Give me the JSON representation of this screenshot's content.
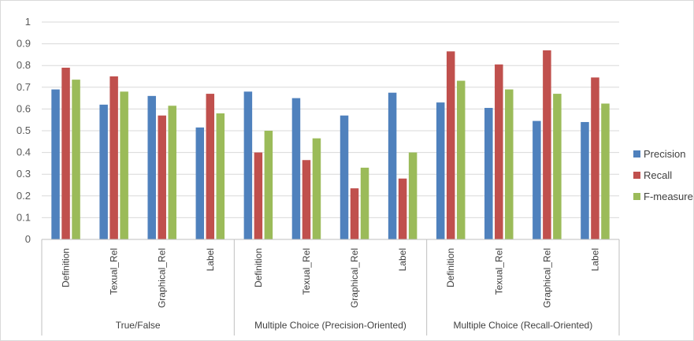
{
  "chart_data": {
    "type": "bar",
    "title": "",
    "xlabel": "",
    "ylabel": "",
    "ylim": [
      0,
      1
    ],
    "yticks": [
      "0",
      "0.1",
      "0.2",
      "0.3",
      "0.4",
      "0.5",
      "0.6",
      "0.7",
      "0.8",
      "0.9",
      "1"
    ],
    "grid": true,
    "legend_position": "right",
    "groups": [
      {
        "label": "True/False",
        "categories": [
          "Definition",
          "Texual_Rel",
          "Graphical_Rel",
          "Label"
        ]
      },
      {
        "label": "Multiple Choice (Precision-Oriented)",
        "categories": [
          "Definition",
          "Texual_Rel",
          "Graphical_Rel",
          "Label"
        ]
      },
      {
        "label": "Multiple Choice (Recall-Oriented)",
        "categories": [
          "Definition",
          "Texual_Rel",
          "Graphical_Rel",
          "Label"
        ]
      }
    ],
    "series": [
      {
        "name": "Precision",
        "color": "#4f81bd",
        "values": [
          0.69,
          0.62,
          0.66,
          0.515,
          0.68,
          0.65,
          0.57,
          0.675,
          0.63,
          0.605,
          0.545,
          0.54
        ]
      },
      {
        "name": "Recall",
        "color": "#c0504d",
        "values": [
          0.79,
          0.75,
          0.57,
          0.67,
          0.4,
          0.365,
          0.235,
          0.28,
          0.865,
          0.805,
          0.87,
          0.745
        ]
      },
      {
        "name": "F-measure",
        "color": "#9bbb59",
        "values": [
          0.735,
          0.68,
          0.615,
          0.58,
          0.5,
          0.465,
          0.33,
          0.4,
          0.73,
          0.69,
          0.67,
          0.625
        ]
      }
    ],
    "gridline_color": "#d9d9d9",
    "axis_color": "#bfbfbf"
  }
}
